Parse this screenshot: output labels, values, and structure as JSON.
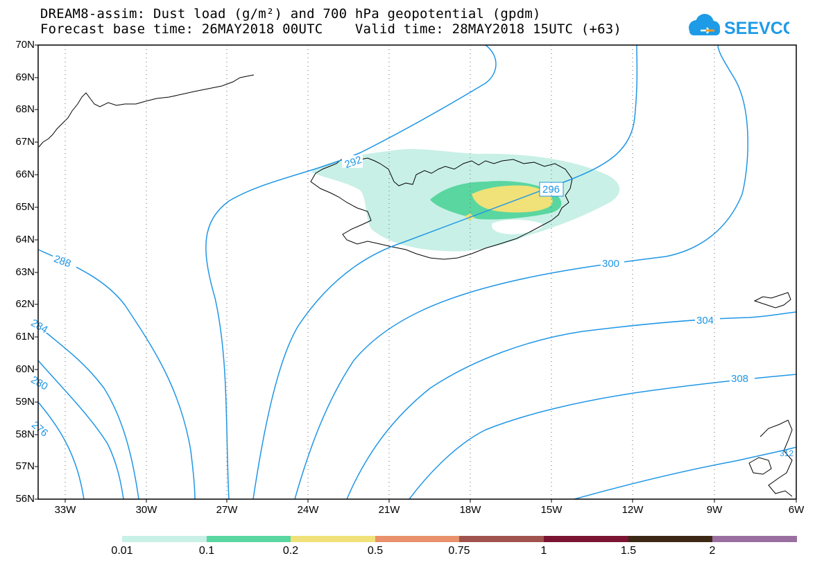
{
  "title_line1": "DREAM8-assim: Dust load (g/m²) and 700 hPa geopotential (gpdm)",
  "title_line2": "Forecast base time: 26MAY2018 00UTC    Valid time: 28MAY2018 15UTC (+63)",
  "logo_text": "SEEVCCC",
  "lat_labels": [
    "70N",
    "69N",
    "68N",
    "67N",
    "66N",
    "65N",
    "64N",
    "63N",
    "62N",
    "61N",
    "60N",
    "59N",
    "58N",
    "57N",
    "56N"
  ],
  "lon_labels": [
    "33W",
    "30W",
    "27W",
    "24W",
    "21W",
    "18W",
    "15W",
    "12W",
    "9W",
    "6W"
  ],
  "contour_labels": [
    "292",
    "296",
    "300",
    "304",
    "308",
    "288",
    "284",
    "280",
    "276",
    "312"
  ],
  "colorbar": {
    "colors": [
      "#c8f0e6",
      "#5ad6a0",
      "#f0e178",
      "#e8916a",
      "#a0524e",
      "#7a1432",
      "#3c2814",
      "#9a6ea0"
    ],
    "labels": [
      "0.01",
      "0.1",
      "0.2",
      "0.5",
      "0.75",
      "1",
      "1.5",
      "2"
    ]
  },
  "colors": {
    "contour": "#1e96e6",
    "coast": "#000000",
    "logo": "#1e9be6"
  }
}
